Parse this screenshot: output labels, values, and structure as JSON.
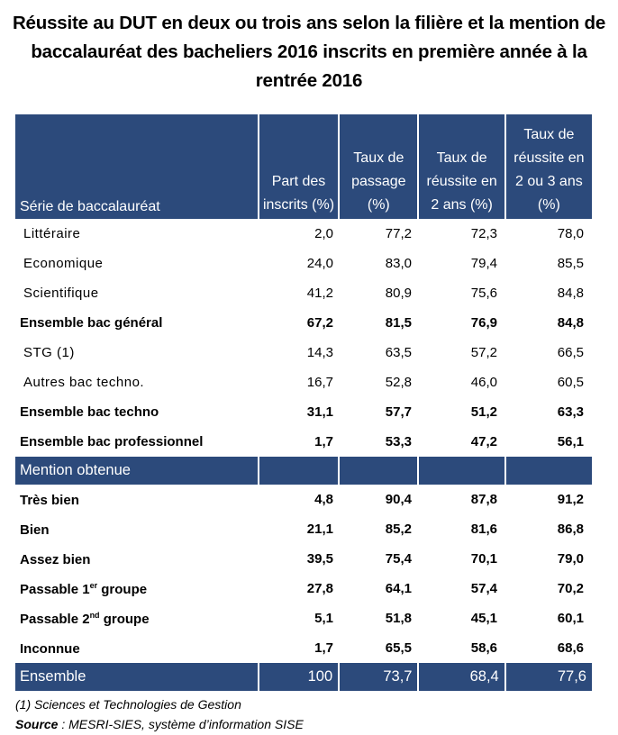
{
  "title": "Réussite au DUT en deux ou trois ans selon la filière et la mention de baccalauréat des bacheliers 2016 inscrits en première année à la rentrée 2016",
  "headers": [
    "Série de baccalauréat",
    "Part des inscrits (%)",
    "Taux de passage (%)",
    "Taux de réussite en 2 ans (%)",
    "Taux de réussite en 2 ou 3 ans (%)"
  ],
  "serie_rows": [
    {
      "label": "Littéraire",
      "bold": false,
      "values": [
        "2,0",
        "77,2",
        "72,3",
        "78,0"
      ]
    },
    {
      "label": "Economique",
      "bold": false,
      "values": [
        "24,0",
        "83,0",
        "79,4",
        "85,5"
      ]
    },
    {
      "label": "Scientifique",
      "bold": false,
      "values": [
        "41,2",
        "80,9",
        "75,6",
        "84,8"
      ]
    },
    {
      "label": "Ensemble bac général",
      "bold": true,
      "values": [
        "67,2",
        "81,5",
        "76,9",
        "84,8"
      ]
    },
    {
      "label": "STG (1)",
      "bold": false,
      "values": [
        "14,3",
        "63,5",
        "57,2",
        "66,5"
      ]
    },
    {
      "label": "Autres bac techno.",
      "bold": false,
      "values": [
        "16,7",
        "52,8",
        "46,0",
        "60,5"
      ]
    },
    {
      "label": "Ensemble bac techno",
      "bold": true,
      "values": [
        "31,1",
        "57,7",
        "51,2",
        "63,3"
      ]
    },
    {
      "label": "Ensemble bac professionnel",
      "bold": true,
      "values": [
        "1,7",
        "53,3",
        "47,2",
        "56,1"
      ]
    }
  ],
  "mention_header": "Mention obtenue",
  "mention_rows": [
    {
      "label": "Très bien",
      "sup": "",
      "suffix": "",
      "values": [
        "4,8",
        "90,4",
        "87,8",
        "91,2"
      ]
    },
    {
      "label": "Bien",
      "sup": "",
      "suffix": "",
      "values": [
        "21,1",
        "85,2",
        "81,6",
        "86,8"
      ]
    },
    {
      "label": "Assez bien",
      "sup": "",
      "suffix": "",
      "values": [
        "39,5",
        "75,4",
        "70,1",
        "79,0"
      ]
    },
    {
      "label": "Passable 1",
      "sup": "er",
      "suffix": " groupe",
      "values": [
        "27,8",
        "64,1",
        "57,4",
        "70,2"
      ]
    },
    {
      "label": "Passable 2",
      "sup": "nd",
      "suffix": " groupe",
      "values": [
        "5,1",
        "51,8",
        "45,1",
        "60,1"
      ]
    },
    {
      "label": "Inconnue",
      "sup": "",
      "suffix": "",
      "values": [
        "1,7",
        "65,5",
        "58,6",
        "68,6"
      ]
    }
  ],
  "total": {
    "label": "Ensemble",
    "values": [
      "100",
      "73,7",
      "68,4",
      "77,6"
    ]
  },
  "footnote": "(1) Sciences et Technologies de Gestion",
  "source_label": "Source",
  "source_text": " : MESRI-SIES, système d’information SISE",
  "colors": {
    "header_bg": "#2c4a7b"
  }
}
